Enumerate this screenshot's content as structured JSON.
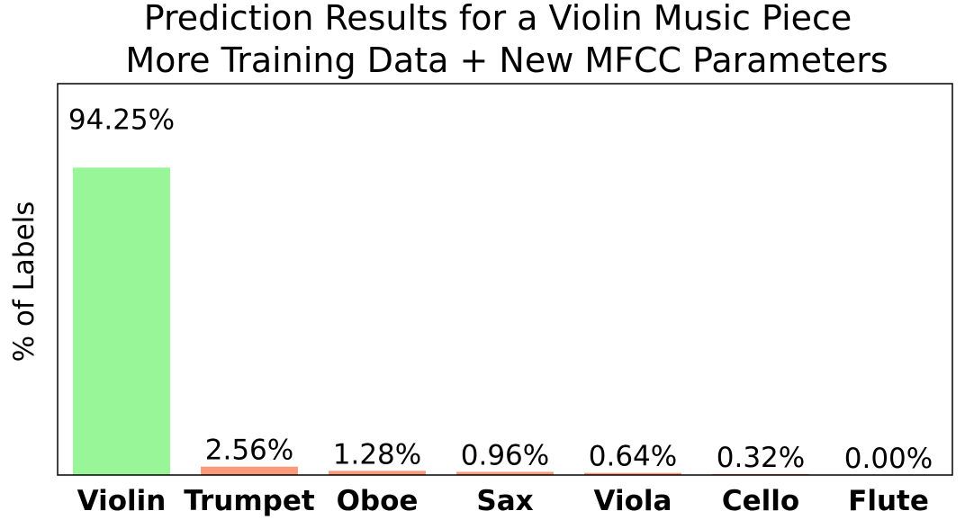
{
  "chart_data": {
    "type": "bar",
    "title": [
      "Prediction Results for a Violin Music Piece",
      "More Training Data + New MFCC Parameters"
    ],
    "xlabel": "",
    "ylabel": "% of Labels",
    "categories": [
      "Violin",
      "Trumpet",
      "Oboe",
      "Sax",
      "Viola",
      "Cello",
      "Flute"
    ],
    "values": [
      94.25,
      2.56,
      1.28,
      0.96,
      0.64,
      0.32,
      0.0
    ],
    "data_labels": [
      "94.25%",
      "2.56%",
      "1.28%",
      "0.96%",
      "0.64%",
      "0.32%",
      "0.00%"
    ],
    "bar_colors": [
      "#98f598",
      "#fa9a7a",
      "#fa9a7a",
      "#fa9a7a",
      "#fa9a7a",
      "#fa9a7a",
      "#fa9a7a"
    ],
    "ylim": [
      0,
      120
    ],
    "yticks_shown": false,
    "grid": false,
    "legend": "none"
  }
}
